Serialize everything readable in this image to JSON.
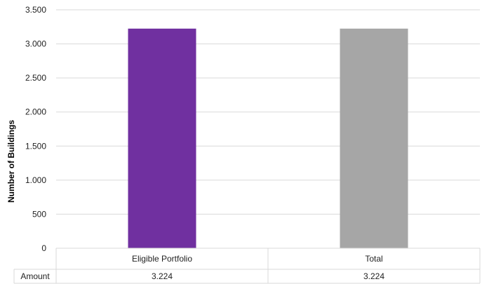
{
  "chart_data": {
    "type": "bar",
    "categories": [
      "Eligible Portfolio",
      "Total"
    ],
    "series": [
      {
        "name": "Amount",
        "values": [
          3224,
          3224
        ],
        "labels": [
          "3.224",
          "3.224"
        ]
      }
    ],
    "ylabel": "Number of Buildings",
    "ylim": [
      0,
      3500
    ],
    "yticks": [
      0,
      500,
      1000,
      1500,
      2000,
      2500,
      3000,
      3500
    ],
    "ytick_labels": [
      "0",
      "500",
      "1.000",
      "1.500",
      "2.000",
      "2.500",
      "3.000",
      "3.500"
    ],
    "grid": true,
    "data_table": true,
    "colors": [
      "#7030a0",
      "#a6a6a6"
    ]
  }
}
